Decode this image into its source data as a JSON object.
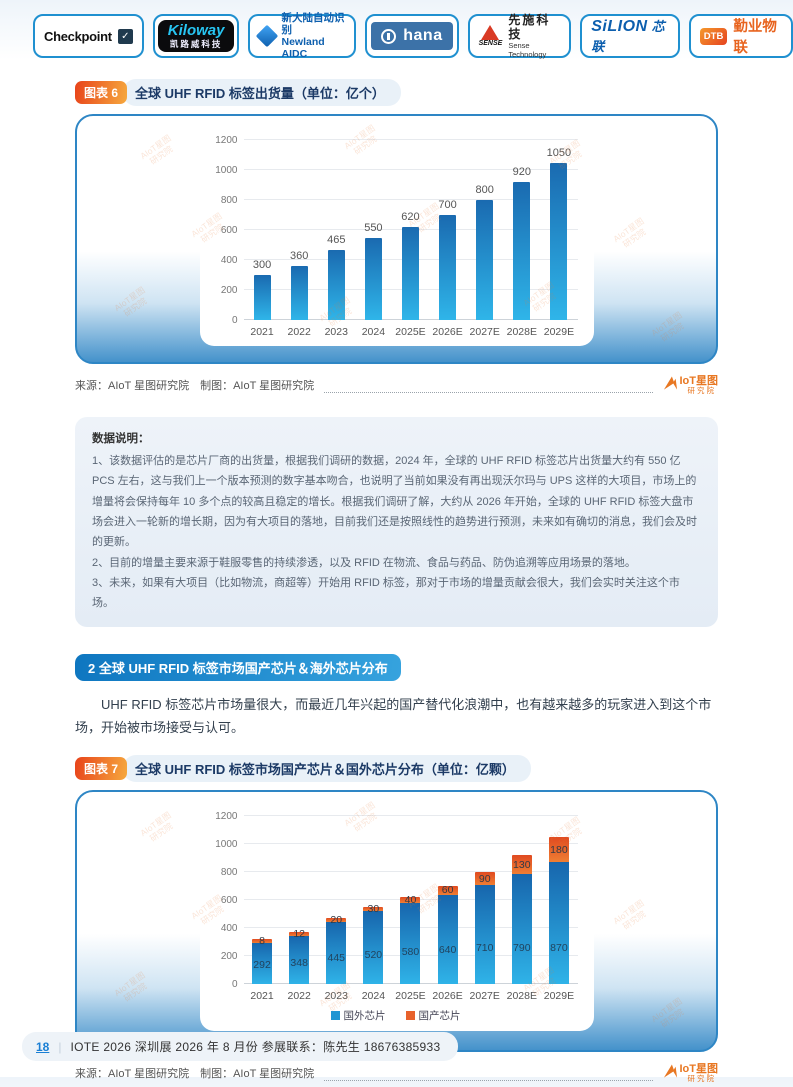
{
  "header": {
    "logos": [
      {
        "name": "checkpoint",
        "text": "Checkpoint",
        "icon": "check-icon"
      },
      {
        "name": "kiloway",
        "line1": "Kiloway",
        "line2": "凯路威科技"
      },
      {
        "name": "newland-aidc",
        "line1": "新大陆自动识别",
        "line2": "Newland AIDC"
      },
      {
        "name": "hana",
        "text": "hana"
      },
      {
        "name": "sense-technology",
        "mark": "SENSE",
        "line1": "先施科技",
        "line2": "Sense Technology"
      },
      {
        "name": "silion",
        "line1": "SiLION",
        "line2": "芯联"
      },
      {
        "name": "dtb-qinye",
        "mark": "DTB",
        "text": "勤业物联"
      }
    ]
  },
  "figure6": {
    "badge": "图表 6",
    "title": "全球 UHF RFID 标签出货量（单位：亿个）",
    "source": "来源：AIoT 星图研究院　制图：AIoT 星图研究院"
  },
  "figure7": {
    "badge": "图表 7",
    "title": "全球 UHF RFID 标签市场国产芯片＆国外芯片分布（单位：亿颗）",
    "source": "来源：AIoT 星图研究院　制图：AIoT 星图研究院"
  },
  "chart_data": [
    {
      "type": "bar",
      "title": "全球 UHF RFID 标签出货量",
      "unit": "亿个",
      "categories": [
        "2021",
        "2022",
        "2023",
        "2024",
        "2025E",
        "2026E",
        "2027E",
        "2028E",
        "2029E"
      ],
      "values": [
        300,
        360,
        465,
        550,
        620,
        700,
        800,
        920,
        1050
      ],
      "xlabel": "",
      "ylabel": "",
      "ylim": [
        0,
        1200
      ],
      "ytick_step": 200,
      "grid": true,
      "bar_color_top": "#1a6ab0",
      "bar_color_bottom": "#2fb5e9"
    },
    {
      "type": "stacked-bar",
      "title": "全球 UHF RFID 标签市场国产芯片＆国外芯片分布",
      "unit": "亿颗",
      "categories": [
        "2021",
        "2022",
        "2023",
        "2024",
        "2025E",
        "2026E",
        "2027E",
        "2028E",
        "2029E"
      ],
      "series": [
        {
          "name": "国外芯片",
          "color": "#2196d3",
          "values": [
            292,
            348,
            445,
            520,
            580,
            640,
            710,
            790,
            870
          ]
        },
        {
          "name": "国产芯片",
          "color": "#e8622c",
          "values": [
            8,
            12,
            20,
            30,
            40,
            60,
            90,
            130,
            180
          ]
        }
      ],
      "xlabel": "",
      "ylabel": "",
      "ylim": [
        0,
        1200
      ],
      "ytick_step": 200,
      "grid": true,
      "legend": "bottom"
    }
  ],
  "note": {
    "title": "数据说明：",
    "items": [
      "1、该数据评估的是芯片厂商的出货量，根据我们调研的数据，2024 年，全球的 UHF RFID 标签芯片出货量大约有 550 亿 PCS 左右，这与我们上一个版本预测的数字基本吻合，也说明了当前如果没有再出现沃尔玛与 UPS 这样的大项目，市场上的增量将会保持每年 10 多个点的较高且稳定的增长。根据我们调研了解，大约从 2026 年开始，全球的 UHF RFID 标签大盘市场会进入一轮新的增长期，因为有大项目的落地，目前我们还是按照线性的趋势进行预测，未来如有确切的消息，我们会及时的更新。",
      "2、目前的增量主要来源于鞋服零售的持续渗透，以及 RFID 在物流、食品与药品、防伪追溯等应用场景的落地。",
      "3、未来，如果有大项目（比如物流，商超等）开始用 RFID 标签，那对于市场的增量贡献会很大，我们会实时关注这个市场。"
    ]
  },
  "section2": {
    "badge": "2 全球 UHF RFID 标签市场国产芯片＆海外芯片分布",
    "paragraph": "UHF RFID 标签芯片市场量很大，而最近几年兴起的国产替代化浪潮中，也有越来越多的玩家进入到这个市场，开始被市场接受与认可。"
  },
  "aiot_logo": {
    "main": "IoT星图",
    "sub": "研究院"
  },
  "watermark": {
    "text": "AIoT星图\n研究院"
  },
  "footer": {
    "page": "18",
    "divider": "|",
    "text": "IOTE 2026 深圳展 2026 年 8 月份  参展联系：陈先生 18676385933"
  },
  "colors": {
    "panel_border": "#2e86c5",
    "bar_blue_top": "#1a6ab0",
    "bar_blue_bottom": "#2fb5e9",
    "domestic_orange": "#e8622c",
    "badge_orange_start": "#e8431a",
    "badge_orange_end": "#f6a93e",
    "section_blue_start": "#0e76c0",
    "section_blue_end": "#36a3de",
    "aiot_orange": "#e87722",
    "page_num_blue": "#1a7fd4"
  }
}
